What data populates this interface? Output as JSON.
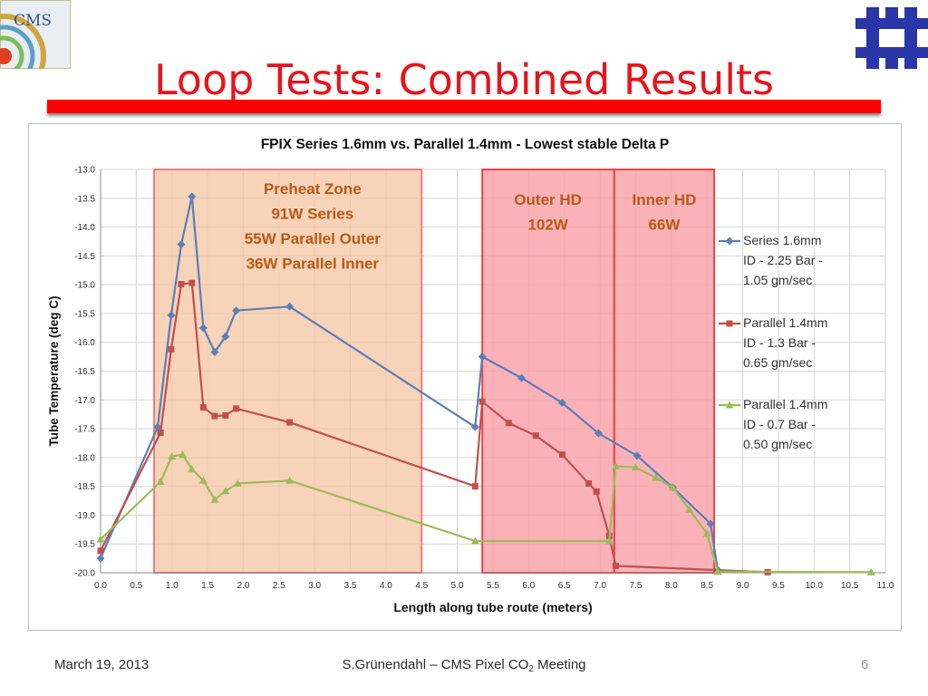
{
  "slide": {
    "title": "Loop Tests: Combined Results",
    "logo_left_text": "CMS",
    "footer_date": "March 19, 2013",
    "footer_center_main": "S.Grünendahl – CMS Pixel CO",
    "footer_center_sub": "2",
    "footer_center_end": " Meeting",
    "page_number": "6"
  },
  "colors": {
    "title": "#e8141c",
    "bar": "#ff0000",
    "preheat_fill": "#f5c8a8",
    "preheat_border": "#f07c7c",
    "hd_fill": "#f9a5ac",
    "hd_border": "#ee4444",
    "zone_text": "#b85a14",
    "series_a": "#5b7fb8",
    "series_b": "#c0504d",
    "series_c": "#9bbb59",
    "fermilab": "#2a36a8"
  },
  "chart_data": {
    "type": "line",
    "title": "FPIX Series 1.6mm vs. Parallel 1.4mm - Lowest stable Delta P",
    "xlabel": "Length along tube route (meters)",
    "ylabel": "Tube Temperature (deg C)",
    "xlim": [
      0,
      11
    ],
    "ylim": [
      -20,
      -13
    ],
    "x_ticks": [
      "0.0",
      "0.5",
      "1.0",
      "1.5",
      "2.0",
      "2.5",
      "3.0",
      "3.5",
      "4.0",
      "4.5",
      "5.0",
      "5.5",
      "6.0",
      "6.5",
      "7.0",
      "7.5",
      "8.0",
      "8.5",
      "9.0",
      "9.5",
      "10.0",
      "10.5",
      "11.0"
    ],
    "y_ticks": [
      "-13.0",
      "-13.5",
      "-14.0",
      "-14.5",
      "-15.0",
      "-15.5",
      "-16.0",
      "-16.5",
      "-17.0",
      "-17.5",
      "-18.0",
      "-18.5",
      "-19.0",
      "-19.5",
      "-20.0"
    ],
    "grid": true,
    "legend_position": "right",
    "zones": [
      {
        "name": "preheat",
        "x0": 0.75,
        "x1": 4.5,
        "lines": [
          "Preheat Zone",
          "91W Series",
          "55W Parallel Outer",
          "36W Parallel Inner"
        ],
        "label_x": 2.97
      },
      {
        "name": "outer-hd",
        "x0": 5.35,
        "x1": 7.2,
        "lines": [
          "Outer HD",
          "102W"
        ],
        "label_x": 6.27
      },
      {
        "name": "inner-hd",
        "x0": 7.2,
        "x1": 8.6,
        "lines": [
          "Inner HD",
          "66W"
        ],
        "label_x": 7.9
      }
    ],
    "series": [
      {
        "name": "Series   1.6mm",
        "legend_lines": [
          "Series   1.6mm",
          "ID - 2.25 Bar -",
          "1.05 gm/sec"
        ],
        "marker": "diamond",
        "points": [
          [
            0,
            -19.75
          ],
          [
            0.8,
            -17.47
          ],
          [
            0.99,
            -15.53
          ],
          [
            1.13,
            -14.3
          ],
          [
            1.28,
            -13.47
          ],
          [
            1.44,
            -15.75
          ],
          [
            1.6,
            -16.17
          ],
          [
            1.75,
            -15.9
          ],
          [
            1.9,
            -15.45
          ],
          [
            2.65,
            -15.38
          ],
          [
            5.25,
            -17.47
          ],
          [
            5.35,
            -16.25
          ],
          [
            5.9,
            -16.62
          ],
          [
            6.47,
            -17.05
          ],
          [
            6.98,
            -17.58
          ],
          [
            7.52,
            -17.97
          ],
          [
            8.02,
            -18.52
          ],
          [
            8.55,
            -19.15
          ],
          [
            8.65,
            -19.95
          ]
        ]
      },
      {
        "name": "Parallel 1.4mm",
        "legend_lines": [
          "Parallel 1.4mm",
          "ID - 1.3 Bar -",
          "0.65 gm/sec"
        ],
        "marker": "square",
        "points": [
          [
            0,
            -19.62
          ],
          [
            0.84,
            -17.57
          ],
          [
            0.99,
            -16.12
          ],
          [
            1.13,
            -14.99
          ],
          [
            1.28,
            -14.97
          ],
          [
            1.44,
            -17.13
          ],
          [
            1.6,
            -17.28
          ],
          [
            1.75,
            -17.27
          ],
          [
            1.9,
            -17.15
          ],
          [
            2.65,
            -17.39
          ],
          [
            5.25,
            -18.5
          ],
          [
            5.35,
            -17.03
          ],
          [
            5.72,
            -17.4
          ],
          [
            6.1,
            -17.62
          ],
          [
            6.47,
            -17.95
          ],
          [
            6.84,
            -18.45
          ],
          [
            6.95,
            -18.59
          ],
          [
            7.13,
            -19.36
          ],
          [
            7.22,
            -19.88
          ],
          [
            9.35,
            -19.99
          ]
        ]
      },
      {
        "name": "Parallel 1.4mm",
        "legend_lines": [
          "Parallel 1.4mm",
          "ID - 0.7 Bar -",
          "0.50 gm/sec"
        ],
        "marker": "triangle",
        "points": [
          [
            0,
            -19.42
          ],
          [
            0.84,
            -18.42
          ],
          [
            1.0,
            -17.98
          ],
          [
            1.15,
            -17.95
          ],
          [
            1.28,
            -18.2
          ],
          [
            1.44,
            -18.4
          ],
          [
            1.6,
            -18.73
          ],
          [
            1.75,
            -18.58
          ],
          [
            1.92,
            -18.45
          ],
          [
            2.65,
            -18.4
          ],
          [
            5.25,
            -19.45
          ],
          [
            7.13,
            -19.45
          ],
          [
            7.22,
            -18.15
          ],
          [
            7.5,
            -18.17
          ],
          [
            7.78,
            -18.35
          ],
          [
            8.02,
            -18.52
          ],
          [
            8.25,
            -18.9
          ],
          [
            8.5,
            -19.32
          ],
          [
            8.65,
            -19.98
          ],
          [
            10.8,
            -19.99
          ]
        ]
      }
    ]
  }
}
